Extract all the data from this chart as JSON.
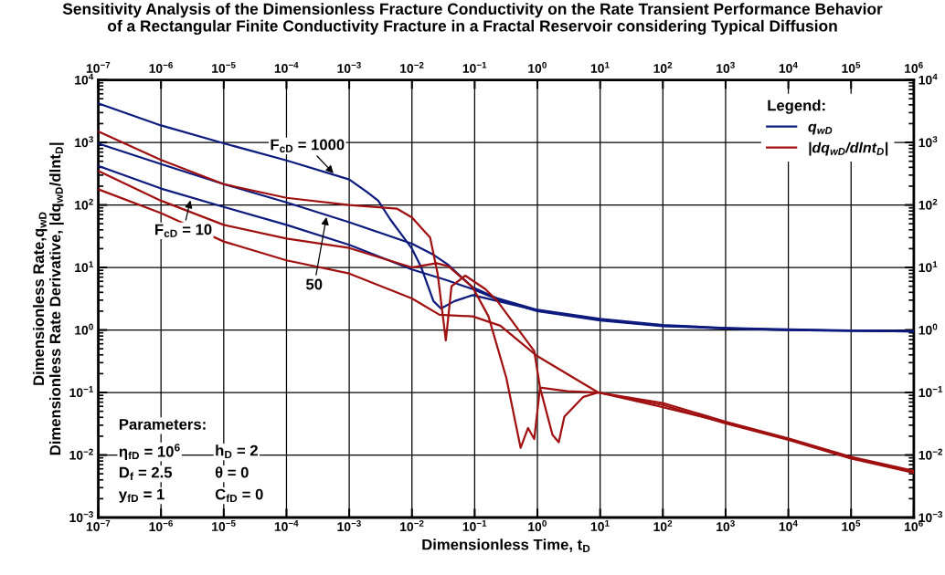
{
  "chart_data": {
    "type": "line",
    "title": "Sensitivity Analysis of the Dimensionless Fracture Conductivity on the Rate Transient Performance Behavior\nof a Rectangular Finite Conductivity Fracture in a Fractal Reservoir considering Typical Diffusion",
    "xlabel": "Dimensionless Time, t$_{D}$",
    "ylabel": "Dimensionless Rate,q$_{wD}$\nDimensionless Rate Derivative, |dq$_{wD}$/dlnt$_{D}$|",
    "legend_title": "Legend:",
    "log": "xy",
    "grid": true,
    "legend": "top right",
    "line_style": "solid",
    "marker": "none",
    "xlim": [
      1e-07,
      1000000
    ],
    "ylim": [
      0.001,
      10000
    ],
    "xticks": [
      {
        "value": 1e-07,
        "label": "10$^{−7}$"
      },
      {
        "value": 1e-06,
        "label": "10$^{−6}$"
      },
      {
        "value": 1e-05,
        "label": "10$^{−5}$"
      },
      {
        "value": 0.0001,
        "label": "10$^{−4}$"
      },
      {
        "value": 0.001,
        "label": "10$^{−3}$"
      },
      {
        "value": 0.01,
        "label": "10$^{−2}$"
      },
      {
        "value": 0.1,
        "label": "10$^{−1}$"
      },
      {
        "value": 1,
        "label": "10$^{0}$"
      },
      {
        "value": 10,
        "label": "10$^{1}$"
      },
      {
        "value": 100,
        "label": "10$^{2}$"
      },
      {
        "value": 1000,
        "label": "10$^{3}$"
      },
      {
        "value": 10000,
        "label": "10$^{4}$"
      },
      {
        "value": 100000,
        "label": "10$^{5}$"
      },
      {
        "value": 1000000,
        "label": "10$^{6}$"
      }
    ],
    "yticks": [
      {
        "value": 0.001,
        "label": "10$^{−3}$"
      },
      {
        "value": 0.01,
        "label": "10$^{−2}$"
      },
      {
        "value": 0.1,
        "label": "10$^{−1}$"
      },
      {
        "value": 1,
        "label": "10$^{0}$"
      },
      {
        "value": 10,
        "label": "10$^{1}$"
      },
      {
        "value": 100,
        "label": "10$^{2}$"
      },
      {
        "value": 1000,
        "label": "10$^{3}$"
      },
      {
        "value": 10000,
        "label": "10$^{4}$"
      }
    ],
    "series": [
      {
        "name": "q$_{wD}$",
        "color": "#0d1b7e",
        "x": [
          1e-07,
          1e-06,
          1e-05,
          0.0001,
          0.001,
          0.0019,
          0.0029,
          0.0045,
          0.01,
          0.0141,
          0.022,
          0.029,
          0.048,
          0.093,
          1,
          10,
          100,
          1000,
          10000,
          100000,
          1000000
        ],
        "values": [
          4200,
          1870,
          970,
          515,
          256,
          162,
          117,
          59,
          20,
          10,
          2.9,
          2.2,
          2.9,
          3.6,
          2.05,
          1.45,
          1.17,
          1.07,
          1.0,
          0.97,
          0.95
        ]
      },
      {
        "color": "#0d1b7e",
        "x": [
          1e-07,
          1e-06,
          1e-05,
          0.0001,
          0.001,
          0.01,
          0.0219,
          0.038,
          0.093,
          0.23,
          1,
          10,
          100,
          1000,
          10000,
          100000,
          1000000
        ],
        "values": [
          960,
          450,
          215,
          110,
          53,
          24,
          16,
          11,
          4.8,
          3.2,
          2.1,
          1.5,
          1.2,
          1.08,
          1.02,
          0.98,
          0.96
        ]
      },
      {
        "color": "#0d1b7e",
        "x": [
          1e-07,
          1e-06,
          1e-05,
          0.0001,
          0.001,
          0.01,
          0.035,
          0.093,
          0.23,
          1,
          10,
          100,
          1000,
          10000,
          100000,
          1000000
        ],
        "values": [
          420,
          183,
          93,
          48,
          23,
          9.3,
          6.3,
          4.5,
          3.1,
          2.0,
          1.42,
          1.15,
          1.06,
          1.0,
          0.97,
          0.95
        ]
      },
      {
        "name": "|dq$_{wD}$/dlnt$_{D}$|",
        "color": "#a01010",
        "x": [
          1e-07,
          1e-06,
          1e-05,
          0.0001,
          0.001,
          0.0058,
          0.01,
          0.0195,
          0.0257,
          0.0347,
          0.0427,
          0.0708,
          0.148,
          0.23,
          0.89,
          1.1,
          1.74,
          2.19,
          2.69,
          5.4,
          9.3,
          100,
          1000,
          10000,
          100000,
          1000000
        ],
        "values": [
          1500,
          525,
          215,
          130,
          100,
          87,
          63,
          30,
          7.9,
          0.68,
          5,
          7.4,
          4.5,
          2.9,
          0.46,
          0.12,
          0.021,
          0.016,
          0.041,
          0.085,
          0.1,
          0.068,
          0.034,
          0.0185,
          0.0093,
          0.0056
        ]
      },
      {
        "color": "#a01010",
        "x": [
          1e-07,
          1e-06,
          1e-05,
          0.0001,
          0.001,
          0.01,
          0.0245,
          0.038,
          0.093,
          0.166,
          0.32,
          0.54,
          0.71,
          0.89,
          1.1,
          3.0,
          9.3,
          100,
          1000,
          10000,
          100000,
          1000000
        ],
        "values": [
          350,
          117,
          48,
          29,
          20.5,
          10,
          11.7,
          10.5,
          4.8,
          1.65,
          0.17,
          0.013,
          0.027,
          0.018,
          0.12,
          0.105,
          0.1,
          0.063,
          0.032,
          0.0175,
          0.0088,
          0.0052
        ]
      },
      {
        "color": "#a01010",
        "x": [
          1e-07,
          1e-06,
          1e-05,
          0.0001,
          0.001,
          0.01,
          0.0275,
          0.093,
          0.257,
          1,
          9.3,
          87,
          1000,
          10000,
          100000,
          1000000
        ],
        "values": [
          178,
          74,
          26,
          13,
          8,
          3.2,
          1.75,
          1.65,
          1.17,
          0.38,
          0.1,
          0.06,
          0.033,
          0.018,
          0.009,
          0.0053
        ]
      }
    ],
    "annotations": [
      {
        "text": "F$_{cD}$ = 1000",
        "x": 0.0006,
        "y": 300
      },
      {
        "text": "F$_{cD}$ = 10",
        "x": 3e-06,
        "y": 130
      },
      {
        "text": "50",
        "x": 0.00044,
        "y": 70
      },
      "Parameters:",
      "η$_{fD}$ = 10$^{6}$",
      "h$_{D}$ = 2",
      "D$_{f}$ = 2.5",
      "θ = 0",
      "y$_{fD}$ = 1",
      "C$_{fD}$ = 0"
    ]
  }
}
